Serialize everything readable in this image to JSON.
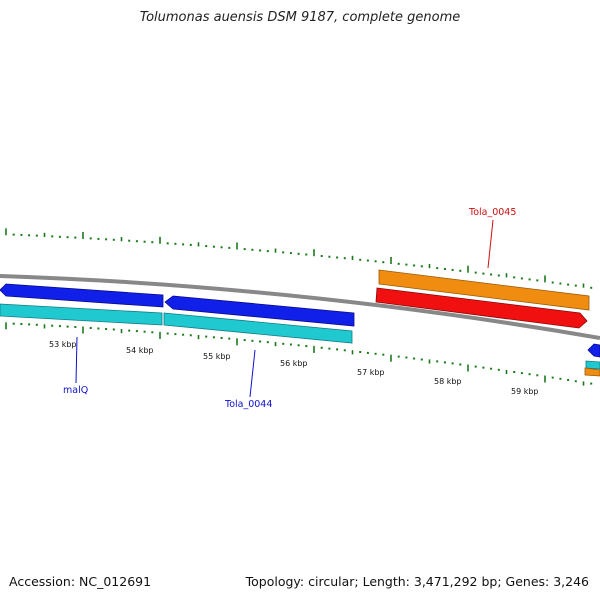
{
  "title": "Tolumonas auensis DSM 9187, complete genome",
  "footer": {
    "accession": "Accession: NC_012691",
    "summary": "Topology: circular; Length: 3,471,292 bp; Genes: 3,246"
  },
  "scale_labels": [
    "53 kbp",
    "54 kbp",
    "55 kbp",
    "56 kbp",
    "57 kbp",
    "58 kbp",
    "59 kbp"
  ],
  "gene_labels": [
    {
      "id": "malQ",
      "text": "malQ",
      "color": "#1010cc"
    },
    {
      "id": "tola0044",
      "text": "Tola_0044",
      "color": "#1010cc"
    },
    {
      "id": "tola0045",
      "text": "Tola_0045",
      "color": "#cc1010"
    }
  ],
  "features": {
    "colors": {
      "cds_forward": "#1020e8",
      "cds_reverse": "#f01010",
      "gene_forward": "#20c8d0",
      "gene_reverse": "#f08c10",
      "backbone": "#888888",
      "ticks": "#1a7a1a"
    }
  }
}
